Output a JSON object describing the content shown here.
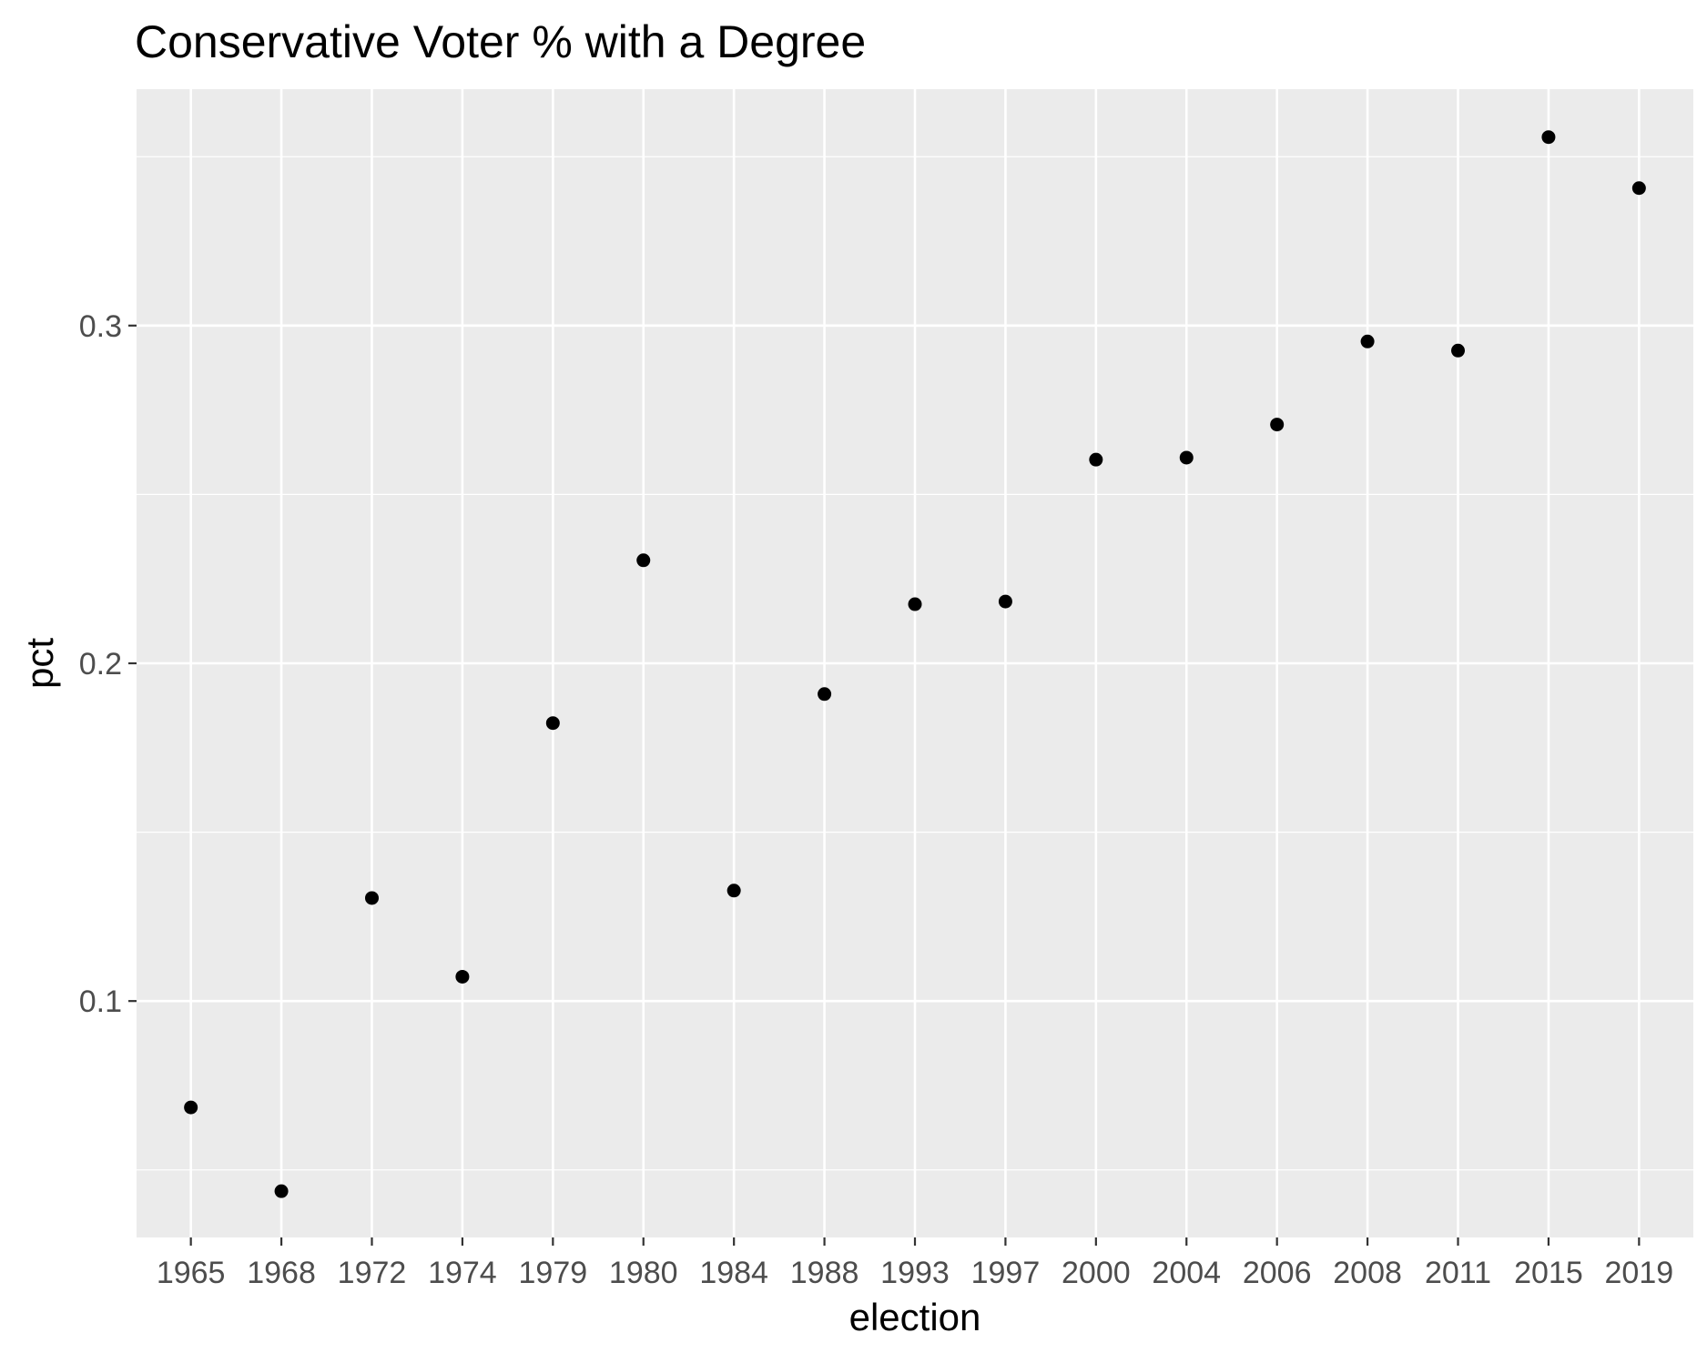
{
  "chart_data": {
    "type": "scatter",
    "title": "Conservative Voter % with a Degree",
    "xlabel": "election",
    "ylabel": "pct",
    "categories": [
      "1965",
      "1968",
      "1972",
      "1974",
      "1979",
      "1980",
      "1984",
      "1988",
      "1993",
      "1997",
      "2000",
      "2004",
      "2006",
      "2008",
      "2011",
      "2015",
      "2019"
    ],
    "values": [
      0.0685,
      0.0437,
      0.1305,
      0.1072,
      0.1823,
      0.2305,
      0.1327,
      0.1909,
      0.2175,
      0.2183,
      0.2603,
      0.2609,
      0.2707,
      0.2953,
      0.2926,
      0.3558,
      0.3407
    ],
    "yticks": [
      0.1,
      0.2,
      0.3
    ],
    "ytick_labels": [
      "0.1",
      "0.2",
      "0.3"
    ],
    "ylim": [
      0.03,
      0.37
    ],
    "grid": true,
    "legend": "none",
    "colors": {
      "panel_background": "#ebebeb",
      "grid": "#ffffff",
      "point": "#000000",
      "tick_text": "#4d4d4d",
      "tick_mark": "#333333"
    }
  }
}
